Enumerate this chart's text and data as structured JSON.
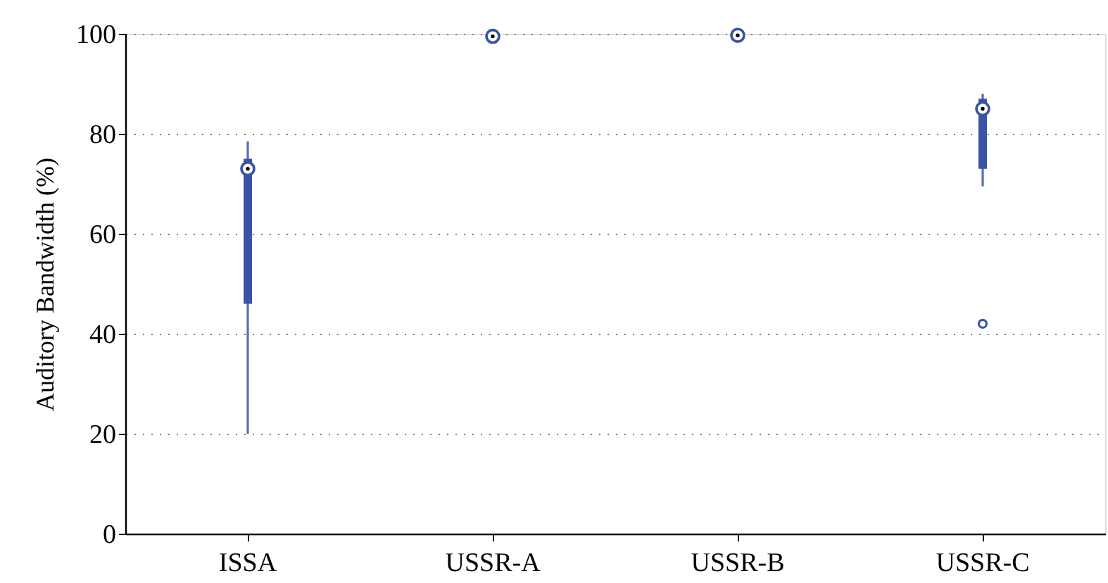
{
  "chart_data": {
    "type": "box",
    "ylabel": "Auditory Bandwidth (%)",
    "categories": [
      "ISSA",
      "USSR-A",
      "USSR-B",
      "USSR-C"
    ],
    "boxes": [
      {
        "low": 20,
        "q1": 46,
        "median": 73,
        "q3": 75,
        "high": 78.5
      },
      null,
      null,
      {
        "low": 69.5,
        "q1": 73,
        "median": 85,
        "q3": 87,
        "high": 88,
        "outliers": [
          42
        ]
      }
    ],
    "series": [
      {
        "type": "scatter",
        "x": [
          "USSR-A",
          "USSR-B"
        ],
        "values": [
          99.5,
          99.7
        ],
        "color": "#3a53a4"
      }
    ],
    "color": "#3a53a4",
    "ylim": [
      0,
      100
    ],
    "yticks": [
      0,
      20,
      40,
      60,
      80,
      100
    ],
    "grid": "y",
    "marker": "circle"
  }
}
